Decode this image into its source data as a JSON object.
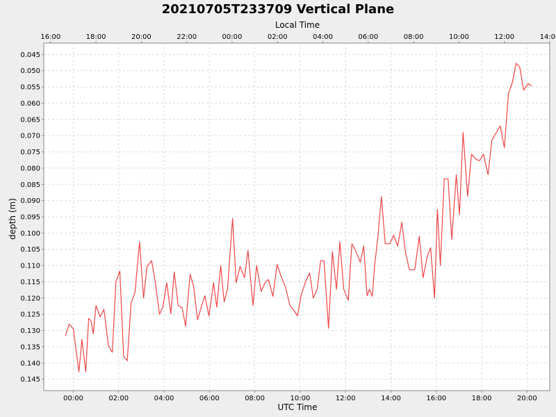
{
  "chart_data": {
    "type": "line",
    "title": "20210705T233709 Vertical Plane",
    "xlabel": "UTC Time",
    "x2label": "Local Time",
    "ylabel": "depth (m)",
    "y_inverted": true,
    "grid": true,
    "ylim": [
      0.0415,
      0.1485
    ],
    "xlim_hours": [
      -1.3,
      21.0
    ],
    "x_tick_values": [
      0,
      2,
      4,
      6,
      8,
      10,
      12,
      14,
      16,
      18,
      20
    ],
    "x_tick_labels": [
      "00:00",
      "02:00",
      "04:00",
      "06:00",
      "08:00",
      "10:00",
      "12:00",
      "14:00",
      "16:00",
      "18:00",
      "20:00"
    ],
    "x2_tick_values": [
      -1,
      1,
      3,
      5,
      7,
      9,
      11,
      13,
      15,
      17,
      19,
      21
    ],
    "x2_tick_labels": [
      "16:00",
      "18:00",
      "20:00",
      "22:00",
      "00:00",
      "02:00",
      "04:00",
      "06:00",
      "08:00",
      "10:00",
      "12:00",
      "14:00"
    ],
    "y_tick_values": [
      0.045,
      0.05,
      0.055,
      0.06,
      0.065,
      0.07,
      0.075,
      0.08,
      0.085,
      0.09,
      0.095,
      0.1,
      0.105,
      0.11,
      0.115,
      0.12,
      0.125,
      0.13,
      0.135,
      0.14,
      0.145
    ],
    "y_tick_labels": [
      "0.045",
      "0.050",
      "0.055",
      "0.060",
      "0.065",
      "0.070",
      "0.075",
      "0.080",
      "0.085",
      "0.090",
      "0.095",
      "0.100",
      "0.105",
      "0.110",
      "0.115",
      "0.120",
      "0.125",
      "0.130",
      "0.135",
      "0.140",
      "0.145"
    ],
    "series": [
      {
        "color": "#ee4444",
        "points": [
          [
            -0.35,
            0.1317
          ],
          [
            -0.18,
            0.128
          ],
          [
            0.0,
            0.1295
          ],
          [
            0.25,
            0.1427
          ],
          [
            0.38,
            0.1327
          ],
          [
            0.55,
            0.1427
          ],
          [
            0.68,
            0.1263
          ],
          [
            0.78,
            0.127
          ],
          [
            0.88,
            0.131
          ],
          [
            1.0,
            0.1223
          ],
          [
            1.18,
            0.1258
          ],
          [
            1.35,
            0.1235
          ],
          [
            1.55,
            0.1347
          ],
          [
            1.72,
            0.1367
          ],
          [
            1.88,
            0.115
          ],
          [
            2.05,
            0.1117
          ],
          [
            2.22,
            0.138
          ],
          [
            2.38,
            0.1393
          ],
          [
            2.55,
            0.1215
          ],
          [
            2.72,
            0.1183
          ],
          [
            2.92,
            0.1027
          ],
          [
            3.1,
            0.12
          ],
          [
            3.25,
            0.1103
          ],
          [
            3.45,
            0.1085
          ],
          [
            3.6,
            0.1145
          ],
          [
            3.8,
            0.125
          ],
          [
            3.95,
            0.1227
          ],
          [
            4.12,
            0.1153
          ],
          [
            4.3,
            0.1248
          ],
          [
            4.45,
            0.112
          ],
          [
            4.62,
            0.1223
          ],
          [
            4.8,
            0.123
          ],
          [
            4.95,
            0.1287
          ],
          [
            5.15,
            0.1127
          ],
          [
            5.3,
            0.1163
          ],
          [
            5.48,
            0.1267
          ],
          [
            5.65,
            0.1225
          ],
          [
            5.8,
            0.1193
          ],
          [
            5.98,
            0.1255
          ],
          [
            6.18,
            0.1153
          ],
          [
            6.32,
            0.1228
          ],
          [
            6.5,
            0.11
          ],
          [
            6.65,
            0.1212
          ],
          [
            6.8,
            0.1172
          ],
          [
            7.02,
            0.0955
          ],
          [
            7.18,
            0.1153
          ],
          [
            7.35,
            0.1103
          ],
          [
            7.55,
            0.1137
          ],
          [
            7.7,
            0.1053
          ],
          [
            7.92,
            0.1223
          ],
          [
            8.08,
            0.11
          ],
          [
            8.28,
            0.118
          ],
          [
            8.45,
            0.1153
          ],
          [
            8.6,
            0.1143
          ],
          [
            8.8,
            0.1195
          ],
          [
            8.98,
            0.1097
          ],
          [
            9.18,
            0.1137
          ],
          [
            9.35,
            0.1165
          ],
          [
            9.55,
            0.1223
          ],
          [
            9.75,
            0.124
          ],
          [
            9.88,
            0.1255
          ],
          [
            10.05,
            0.119
          ],
          [
            10.25,
            0.1147
          ],
          [
            10.42,
            0.1123
          ],
          [
            10.58,
            0.12
          ],
          [
            10.75,
            0.1173
          ],
          [
            10.9,
            0.1085
          ],
          [
            11.05,
            0.1085
          ],
          [
            11.25,
            0.1293
          ],
          [
            11.42,
            0.1057
          ],
          [
            11.6,
            0.1173
          ],
          [
            11.75,
            0.1027
          ],
          [
            11.92,
            0.1173
          ],
          [
            12.12,
            0.1207
          ],
          [
            12.28,
            0.1033
          ],
          [
            12.42,
            0.105
          ],
          [
            12.65,
            0.109
          ],
          [
            12.8,
            0.104
          ],
          [
            12.95,
            0.1193
          ],
          [
            13.05,
            0.1173
          ],
          [
            13.18,
            0.1195
          ],
          [
            13.28,
            0.11
          ],
          [
            13.42,
            0.1017
          ],
          [
            13.58,
            0.0888
          ],
          [
            13.75,
            0.1033
          ],
          [
            13.95,
            0.1033
          ],
          [
            14.12,
            0.1007
          ],
          [
            14.3,
            0.104
          ],
          [
            14.48,
            0.0967
          ],
          [
            14.65,
            0.1063
          ],
          [
            14.82,
            0.1113
          ],
          [
            15.05,
            0.1113
          ],
          [
            15.25,
            0.101
          ],
          [
            15.42,
            0.1137
          ],
          [
            15.6,
            0.1073
          ],
          [
            15.75,
            0.1045
          ],
          [
            15.92,
            0.12
          ],
          [
            16.05,
            0.0927
          ],
          [
            16.18,
            0.11
          ],
          [
            16.35,
            0.0833
          ],
          [
            16.52,
            0.0833
          ],
          [
            16.68,
            0.102
          ],
          [
            16.88,
            0.082
          ],
          [
            17.02,
            0.0943
          ],
          [
            17.18,
            0.069
          ],
          [
            17.38,
            0.0887
          ],
          [
            17.55,
            0.0757
          ],
          [
            17.75,
            0.0773
          ],
          [
            17.9,
            0.0777
          ],
          [
            18.08,
            0.0757
          ],
          [
            18.28,
            0.082
          ],
          [
            18.45,
            0.0713
          ],
          [
            18.65,
            0.069
          ],
          [
            18.82,
            0.067
          ],
          [
            19.0,
            0.0737
          ],
          [
            19.18,
            0.057
          ],
          [
            19.35,
            0.0537
          ],
          [
            19.52,
            0.0477
          ],
          [
            19.68,
            0.049
          ],
          [
            19.85,
            0.056
          ],
          [
            20.05,
            0.054
          ],
          [
            20.2,
            0.0547
          ]
        ]
      }
    ]
  }
}
